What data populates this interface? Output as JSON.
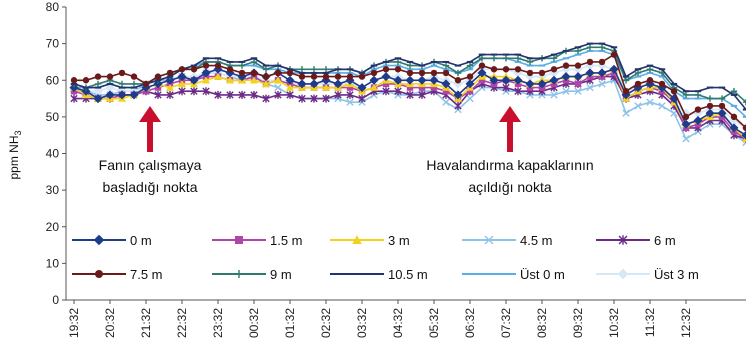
{
  "chart_data": {
    "type": "line",
    "ylabel": {
      "text": "ppm NH",
      "sub": "3"
    },
    "ylim": [
      0,
      80
    ],
    "yticks": [
      0,
      10,
      20,
      30,
      40,
      50,
      60,
      70,
      80
    ],
    "grid": false,
    "legend_position": "bottom",
    "x_tick_labels": [
      "19:32",
      "20:32",
      "21:32",
      "22:32",
      "23:32",
      "00:32",
      "01:32",
      "02:32",
      "03:32",
      "04:32",
      "05:32",
      "06:32",
      "07:32",
      "08:32",
      "09:32",
      "10:32",
      "11:32",
      "12:32"
    ],
    "annotations": [
      {
        "lines": [
          "Fanın çalışmaya",
          "başladığı nokta"
        ],
        "at_x_index": 6
      },
      {
        "lines": [
          "Havalandırma kapaklarının",
          "açıldığı nokta"
        ],
        "at_x_index": 36
      }
    ],
    "series": [
      {
        "name": "0 m",
        "color": "#1f3b8c",
        "marker": "diamond",
        "values": [
          58,
          57,
          55,
          56,
          56,
          56,
          58,
          59,
          60,
          61,
          60,
          62,
          63,
          62,
          61,
          62,
          61,
          62,
          60,
          59,
          59,
          60,
          59,
          60,
          58,
          60,
          61,
          60,
          60,
          60,
          60,
          59,
          56,
          59,
          62,
          60,
          60,
          60,
          59,
          59,
          60,
          61,
          61,
          62,
          62,
          63,
          56,
          58,
          59,
          58,
          55,
          48,
          49,
          51,
          51,
          47,
          45,
          43
        ]
      },
      {
        "name": "1.5 m",
        "color": "#b044a8",
        "marker": "square",
        "values": [
          57,
          56,
          55,
          55,
          56,
          56,
          57,
          58,
          59,
          60,
          60,
          61,
          61,
          60,
          60,
          61,
          59,
          60,
          59,
          58,
          58,
          58,
          58,
          58,
          57,
          58,
          59,
          59,
          58,
          58,
          58,
          57,
          55,
          57,
          60,
          59,
          60,
          59,
          58,
          58,
          59,
          60,
          59,
          61,
          61,
          62,
          55,
          57,
          58,
          57,
          54,
          47,
          48,
          50,
          50,
          46,
          44,
          42
        ]
      },
      {
        "name": "3 m",
        "color": "#f2d21c",
        "marker": "triangle",
        "values": [
          58,
          56,
          55,
          55,
          55,
          56,
          58,
          59,
          58,
          59,
          59,
          60,
          61,
          60,
          60,
          60,
          59,
          60,
          58,
          58,
          58,
          58,
          58,
          59,
          57,
          58,
          60,
          59,
          59,
          59,
          59,
          58,
          55,
          58,
          61,
          61,
          61,
          60,
          59,
          60,
          60,
          61,
          61,
          62,
          62,
          63,
          55,
          57,
          58,
          58,
          54,
          48,
          49,
          50,
          51,
          47,
          44,
          42
        ]
      },
      {
        "name": "4.5 m",
        "color": "#8ec3e8",
        "marker": "x",
        "values": [
          58,
          57,
          56,
          56,
          57,
          57,
          59,
          60,
          60,
          61,
          60,
          62,
          62,
          61,
          60,
          61,
          59,
          58,
          56,
          55,
          55,
          55,
          55,
          54,
          54,
          56,
          57,
          56,
          56,
          57,
          57,
          54,
          52,
          55,
          58,
          58,
          57,
          57,
          56,
          56,
          56,
          57,
          57,
          58,
          59,
          60,
          51,
          53,
          54,
          53,
          51,
          44,
          46,
          48,
          48,
          45,
          43,
          41
        ]
      },
      {
        "name": "6 m",
        "color": "#6a2a86",
        "marker": "star",
        "values": [
          55,
          55,
          55,
          55,
          56,
          56,
          57,
          56,
          56,
          57,
          57,
          57,
          56,
          56,
          56,
          56,
          55,
          56,
          56,
          55,
          55,
          55,
          56,
          56,
          55,
          57,
          57,
          57,
          56,
          56,
          57,
          56,
          53,
          57,
          59,
          58,
          58,
          57,
          57,
          57,
          58,
          59,
          59,
          60,
          61,
          61,
          55,
          56,
          57,
          56,
          53,
          47,
          47,
          49,
          49,
          45,
          44,
          42
        ]
      },
      {
        "name": "7.5 m",
        "color": "#6b1a1a",
        "marker": "circle",
        "values": [
          60,
          60,
          61,
          61,
          62,
          61,
          59,
          61,
          62,
          63,
          63,
          64,
          64,
          63,
          62,
          62,
          61,
          62,
          62,
          61,
          61,
          61,
          61,
          61,
          61,
          62,
          63,
          63,
          62,
          62,
          62,
          62,
          60,
          61,
          64,
          63,
          63,
          63,
          62,
          62,
          63,
          64,
          64,
          65,
          65,
          67,
          57,
          59,
          60,
          59,
          57,
          50,
          52,
          53,
          53,
          50,
          47,
          45
        ]
      },
      {
        "name": "9 m",
        "color": "#2f7a6e",
        "marker": "plus",
        "values": [
          59,
          58,
          59,
          60,
          59,
          59,
          59,
          60,
          61,
          63,
          63,
          65,
          65,
          64,
          64,
          65,
          63,
          64,
          63,
          63,
          63,
          63,
          63,
          63,
          62,
          64,
          65,
          65,
          64,
          64,
          65,
          64,
          62,
          64,
          66,
          66,
          66,
          66,
          65,
          66,
          66,
          68,
          68,
          69,
          69,
          68,
          60,
          62,
          63,
          62,
          58,
          56,
          56,
          55,
          55,
          57,
          54,
          48
        ]
      },
      {
        "name": "10.5 m",
        "color": "#24326d",
        "marker": "dash",
        "values": [
          59,
          58,
          58,
          59,
          58,
          58,
          59,
          60,
          61,
          63,
          64,
          66,
          66,
          65,
          65,
          66,
          64,
          64,
          63,
          62,
          62,
          62,
          63,
          63,
          62,
          64,
          65,
          66,
          65,
          64,
          65,
          65,
          64,
          65,
          67,
          67,
          67,
          67,
          66,
          66,
          67,
          68,
          69,
          70,
          70,
          69,
          61,
          63,
          64,
          63,
          59,
          57,
          57,
          58,
          58,
          56,
          52,
          50
        ]
      },
      {
        "name": "Üst 0 m",
        "color": "#5aaee6",
        "marker": "dash",
        "values": [
          58,
          58,
          58,
          59,
          58,
          58,
          59,
          61,
          62,
          63,
          64,
          65,
          65,
          64,
          64,
          64,
          63,
          63,
          62,
          62,
          62,
          62,
          62,
          62,
          61,
          63,
          64,
          64,
          63,
          63,
          64,
          63,
          62,
          63,
          66,
          66,
          66,
          65,
          64,
          64,
          65,
          66,
          67,
          68,
          68,
          67,
          60,
          61,
          62,
          61,
          57,
          55,
          55,
          55,
          55,
          53,
          50,
          46
        ]
      },
      {
        "name": "Üst 3 m",
        "color": "#d4e8f6",
        "marker": "diamond",
        "values": [
          57,
          57,
          57,
          58,
          57,
          57,
          58,
          59,
          60,
          61,
          61,
          62,
          62,
          61,
          61,
          61,
          60,
          60,
          59,
          59,
          59,
          59,
          59,
          59,
          58,
          60,
          61,
          61,
          60,
          60,
          61,
          60,
          59,
          60,
          63,
          63,
          63,
          62,
          61,
          61,
          62,
          63,
          63,
          64,
          64,
          63,
          57,
          58,
          59,
          58,
          54,
          51,
          51,
          52,
          52,
          49,
          47,
          40
        ]
      }
    ]
  }
}
